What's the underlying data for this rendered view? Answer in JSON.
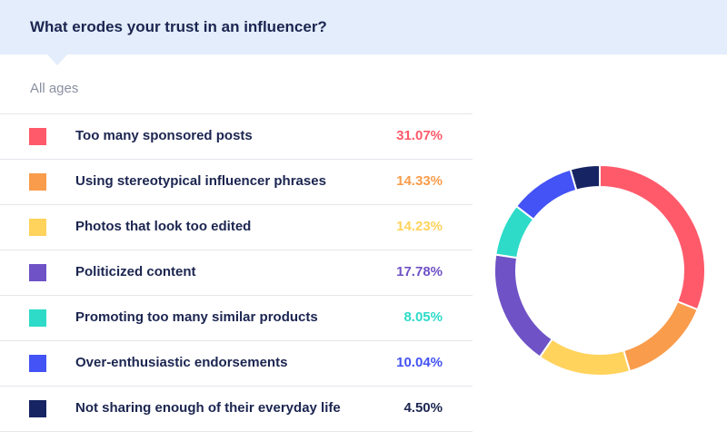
{
  "header": {
    "title": "What erodes your trust in an influencer?"
  },
  "subtitle": "All ages",
  "chart_data": {
    "type": "pie",
    "title": "What erodes your trust in an influencer?",
    "subtitle": "All ages",
    "donut": true,
    "categories": [
      "Too many sponsored posts",
      "Using stereotypical influencer phrases",
      "Photos that look too edited",
      "Politicized content",
      "Promoting too many similar products",
      "Over-enthusiastic endorsements",
      "Not sharing enough of their everyday life"
    ],
    "values": [
      31.07,
      14.33,
      14.23,
      17.78,
      8.05,
      10.04,
      4.5
    ],
    "labels": [
      "31.07%",
      "14.33%",
      "14.23%",
      "17.78%",
      "8.05%",
      "10.04%",
      "4.50%"
    ],
    "colors": [
      "#ff5a6a",
      "#f99c4c",
      "#ffd35c",
      "#6f52c6",
      "#2ddbc8",
      "#4353f5",
      "#172463"
    ],
    "value_text_colors": [
      "#ff5a6a",
      "#f99c4c",
      "#ffd35c",
      "#6f52c6",
      "#2ddbc8",
      "#4353f5",
      "#1b2550"
    ],
    "legend": "left"
  }
}
